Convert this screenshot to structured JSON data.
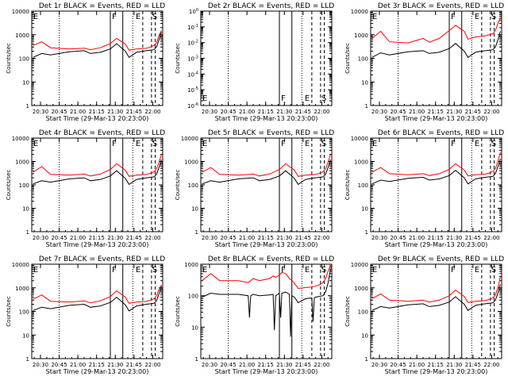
{
  "figure": {
    "start_time_label": "Start Time (29-Mar-13 20:23:00)",
    "ylabel": "Counts/sec",
    "x_ticks": [
      "20:30",
      "20:45",
      "21:00",
      "21:15",
      "21:30",
      "21:45",
      "22:00"
    ],
    "y_ticks_log": [
      "1",
      "10",
      "100",
      "1000",
      "10000"
    ],
    "y_ticks_small": [
      "10^-6",
      "10^-5",
      "10^-4",
      "10^-3",
      "10^-2",
      "10^-1",
      "10^0"
    ],
    "markers": {
      "F": "F",
      "E": "E",
      "S": "S",
      "E_start": "E"
    },
    "colors": {
      "events": "#000000",
      "lld": "#ff0000",
      "axis": "#000000"
    }
  },
  "chart_data": [
    {
      "type": "line",
      "title": "Det 1r BLACK = Events, RED = LLD",
      "xlabel": "Start Time (29-Mar-13 20:23:00)",
      "ylabel": "Counts/sec",
      "x_unit": "minutes since 20:23",
      "xlim": [
        0,
        105
      ],
      "ylim": [
        1,
        10000
      ],
      "yscale": "log",
      "series": [
        {
          "name": "Events",
          "color": "black",
          "x": [
            1,
            8,
            15,
            30,
            42,
            47,
            55,
            63,
            68,
            75,
            78,
            84,
            89,
            92,
            95,
            98,
            100,
            102,
            104
          ],
          "values": [
            110,
            160,
            140,
            190,
            210,
            160,
            180,
            250,
            420,
            200,
            110,
            180,
            200,
            210,
            220,
            230,
            300,
            600,
            1300
          ]
        },
        {
          "name": "LLD",
          "color": "red",
          "x": [
            1,
            8,
            15,
            30,
            42,
            47,
            55,
            63,
            68,
            75,
            78,
            84,
            89,
            92,
            95,
            98,
            100,
            102,
            104
          ],
          "values": [
            350,
            500,
            280,
            250,
            270,
            230,
            280,
            420,
            700,
            400,
            220,
            250,
            260,
            270,
            300,
            350,
            450,
            900,
            1500
          ]
        }
      ],
      "vlines_dotted": [
        22,
        81
      ],
      "vlines_solid": [
        63,
        73
      ],
      "vlines_dashed": [
        89,
        96,
        99
      ]
    },
    {
      "type": "line",
      "title": "Det 2r BLACK = Events, RED = LLD",
      "xlabel": "Start Time (29-Mar-13 20:23:00)",
      "ylabel": "Counts/sec",
      "x_unit": "minutes since 20:23",
      "xlim": [
        0,
        105
      ],
      "ylim": [
        1e-06,
        1
      ],
      "yscale": "log",
      "series": [],
      "vlines_dotted": [
        22,
        81
      ],
      "vlines_solid": [
        63,
        73
      ],
      "vlines_dashed": [
        89,
        96,
        99
      ]
    },
    {
      "type": "line",
      "title": "Det 3r BLACK = Events, RED = LLD",
      "xlabel": "Start Time (29-Mar-13 20:23:00)",
      "ylabel": "Counts/sec",
      "x_unit": "minutes since 20:23",
      "xlim": [
        0,
        105
      ],
      "ylim": [
        1,
        10000
      ],
      "yscale": "log",
      "series": [
        {
          "name": "Events",
          "color": "black",
          "x": [
            1,
            8,
            15,
            30,
            42,
            47,
            55,
            63,
            68,
            75,
            78,
            84,
            89,
            92,
            95,
            98,
            100,
            102,
            104
          ],
          "values": [
            110,
            170,
            140,
            190,
            210,
            160,
            180,
            260,
            430,
            200,
            110,
            180,
            200,
            210,
            220,
            230,
            300,
            600,
            1400
          ]
        },
        {
          "name": "LLD",
          "color": "red",
          "x": [
            1,
            8,
            15,
            30,
            42,
            47,
            55,
            63,
            68,
            75,
            78,
            84,
            89,
            92,
            95,
            98,
            100,
            102,
            104
          ],
          "values": [
            700,
            1400,
            500,
            450,
            700,
            480,
            700,
            1500,
            2500,
            1400,
            650,
            800,
            850,
            900,
            1000,
            1100,
            1500,
            3000,
            5000
          ]
        }
      ],
      "vlines_dotted": [
        22,
        81
      ],
      "vlines_solid": [
        63,
        73
      ],
      "vlines_dashed": [
        89,
        96,
        99
      ]
    },
    {
      "type": "line",
      "title": "Det 4r BLACK = Events, RED = LLD",
      "xlabel": "Start Time (29-Mar-13 20:23:00)",
      "ylabel": "Counts/sec",
      "x_unit": "minutes since 20:23",
      "xlim": [
        0,
        105
      ],
      "ylim": [
        1,
        10000
      ],
      "yscale": "log",
      "series": [
        {
          "name": "Events",
          "color": "black",
          "x": [
            1,
            8,
            15,
            30,
            42,
            47,
            55,
            63,
            68,
            75,
            78,
            84,
            89,
            92,
            95,
            98,
            100,
            102,
            104
          ],
          "values": [
            110,
            150,
            130,
            180,
            200,
            150,
            170,
            240,
            400,
            190,
            105,
            170,
            190,
            200,
            210,
            220,
            280,
            550,
            1200
          ]
        },
        {
          "name": "LLD",
          "color": "red",
          "x": [
            1,
            8,
            15,
            30,
            42,
            47,
            55,
            63,
            68,
            75,
            78,
            84,
            89,
            92,
            95,
            98,
            100,
            102,
            104
          ],
          "values": [
            350,
            600,
            280,
            260,
            290,
            240,
            290,
            450,
            800,
            420,
            230,
            260,
            270,
            280,
            310,
            360,
            480,
            900,
            2000
          ]
        }
      ],
      "vlines_dotted": [
        22,
        81
      ],
      "vlines_solid": [
        63,
        73
      ],
      "vlines_dashed": [
        89,
        96,
        99
      ]
    },
    {
      "type": "line",
      "title": "Det 5r BLACK = Events, RED = LLD",
      "xlabel": "Start Time (29-Mar-13 20:23:00)",
      "ylabel": "Counts/sec",
      "x_unit": "minutes since 20:23",
      "xlim": [
        0,
        105
      ],
      "ylim": [
        1,
        10000
      ],
      "yscale": "log",
      "series": [
        {
          "name": "Events",
          "color": "black",
          "x": [
            1,
            8,
            15,
            30,
            42,
            47,
            55,
            63,
            68,
            75,
            78,
            84,
            89,
            92,
            95,
            98,
            100,
            102,
            104
          ],
          "values": [
            110,
            150,
            130,
            180,
            200,
            150,
            170,
            240,
            400,
            190,
            105,
            170,
            190,
            200,
            210,
            220,
            280,
            550,
            1200
          ]
        },
        {
          "name": "LLD",
          "color": "red",
          "x": [
            1,
            8,
            15,
            30,
            42,
            47,
            55,
            63,
            68,
            75,
            78,
            84,
            89,
            92,
            95,
            98,
            100,
            102,
            104
          ],
          "values": [
            350,
            550,
            280,
            260,
            290,
            240,
            290,
            450,
            800,
            420,
            230,
            260,
            270,
            280,
            310,
            360,
            480,
            900,
            2000
          ]
        }
      ],
      "vlines_dotted": [
        22,
        81
      ],
      "vlines_solid": [
        63,
        73
      ],
      "vlines_dashed": [
        89,
        96,
        99
      ]
    },
    {
      "type": "line",
      "title": "Det 6r BLACK = Events, RED = LLD",
      "xlabel": "Start Time (29-Mar-13 20:23:00)",
      "ylabel": "Counts/sec",
      "x_unit": "minutes since 20:23",
      "xlim": [
        0,
        105
      ],
      "ylim": [
        1,
        10000
      ],
      "yscale": "log",
      "series": [
        {
          "name": "Events",
          "color": "black",
          "x": [
            1,
            8,
            15,
            30,
            42,
            47,
            55,
            63,
            68,
            75,
            78,
            84,
            89,
            92,
            95,
            98,
            100,
            102,
            104
          ],
          "values": [
            110,
            160,
            140,
            190,
            210,
            160,
            180,
            250,
            420,
            200,
            110,
            180,
            200,
            210,
            220,
            230,
            300,
            600,
            1300
          ]
        },
        {
          "name": "LLD",
          "color": "red",
          "x": [
            1,
            8,
            15,
            30,
            42,
            47,
            55,
            63,
            68,
            75,
            78,
            84,
            89,
            92,
            95,
            98,
            100,
            102,
            104
          ],
          "values": [
            350,
            550,
            300,
            270,
            300,
            250,
            300,
            460,
            800,
            430,
            240,
            270,
            280,
            290,
            320,
            380,
            500,
            1000,
            2500
          ]
        }
      ],
      "vlines_dotted": [
        22,
        81
      ],
      "vlines_solid": [
        63,
        73
      ],
      "vlines_dashed": [
        89,
        96,
        99
      ]
    },
    {
      "type": "line",
      "title": "Det 7r BLACK = Events, RED = LLD",
      "xlabel": "Start Time (29-Mar-13 20:23:00)",
      "ylabel": "Counts/sec",
      "x_unit": "minutes since 20:23",
      "xlim": [
        0,
        105
      ],
      "ylim": [
        1,
        10000
      ],
      "yscale": "log",
      "series": [
        {
          "name": "Events",
          "color": "black",
          "x": [
            1,
            8,
            15,
            30,
            42,
            47,
            55,
            63,
            68,
            75,
            78,
            84,
            89,
            92,
            95,
            98,
            100,
            102,
            104
          ],
          "values": [
            110,
            150,
            130,
            180,
            200,
            150,
            170,
            240,
            400,
            190,
            105,
            170,
            190,
            200,
            210,
            220,
            280,
            550,
            1200
          ]
        },
        {
          "name": "LLD",
          "color": "red",
          "x": [
            1,
            8,
            15,
            30,
            42,
            47,
            55,
            63,
            68,
            75,
            78,
            84,
            89,
            92,
            95,
            98,
            100,
            102,
            104
          ],
          "values": [
            330,
            500,
            270,
            250,
            280,
            230,
            280,
            430,
            750,
            400,
            220,
            250,
            260,
            270,
            300,
            340,
            450,
            850,
            1300
          ]
        }
      ],
      "vlines_dotted": [
        22,
        81
      ],
      "vlines_solid": [
        63,
        73
      ],
      "vlines_dashed": [
        89,
        96,
        99
      ]
    },
    {
      "type": "line",
      "title": "Det 8r BLACK = Events, RED = LLD",
      "xlabel": "Start Time (29-Mar-13 20:23:00)",
      "ylabel": "Counts/sec",
      "x_unit": "minutes since 20:23",
      "xlim": [
        0,
        105
      ],
      "ylim": [
        1,
        1000
      ],
      "yscale": "log",
      "series": [
        {
          "name": "Events",
          "color": "black",
          "x": [
            1,
            8,
            15,
            30,
            38,
            39,
            40,
            42,
            47,
            55,
            58,
            59,
            60,
            63,
            64,
            65,
            68,
            71,
            72,
            73,
            75,
            78,
            84,
            89,
            90,
            91,
            92,
            95,
            98,
            100,
            102,
            104
          ],
          "values": [
            90,
            120,
            110,
            110,
            100,
            20,
            100,
            110,
            100,
            105,
            110,
            8,
            100,
            120,
            20,
            120,
            130,
            110,
            5,
            100,
            90,
            60,
            80,
            85,
            15,
            85,
            90,
            95,
            100,
            130,
            250,
            700
          ]
        },
        {
          "name": "LLD",
          "color": "red",
          "x": [
            1,
            8,
            15,
            30,
            38,
            42,
            47,
            55,
            58,
            60,
            63,
            65,
            68,
            71,
            73,
            75,
            78,
            84,
            89,
            92,
            95,
            98,
            100,
            102,
            104
          ],
          "values": [
            300,
            500,
            300,
            300,
            260,
            350,
            300,
            350,
            420,
            380,
            450,
            550,
            500,
            350,
            300,
            250,
            170,
            180,
            190,
            200,
            220,
            260,
            350,
            600,
            900
          ]
        }
      ],
      "vlines_dotted": [
        22,
        81
      ],
      "vlines_solid": [
        63,
        73
      ],
      "vlines_dashed": [
        89,
        96,
        99
      ]
    },
    {
      "type": "line",
      "title": "Det 9r BLACK = Events, RED = LLD",
      "xlabel": "Start Time (29-Mar-13 20:23:00)",
      "ylabel": "Counts/sec",
      "x_unit": "minutes since 20:23",
      "xlim": [
        0,
        105
      ],
      "ylim": [
        1,
        10000
      ],
      "yscale": "log",
      "series": [
        {
          "name": "Events",
          "color": "black",
          "x": [
            1,
            8,
            15,
            30,
            42,
            47,
            55,
            63,
            68,
            75,
            78,
            84,
            89,
            92,
            95,
            98,
            100,
            102,
            104
          ],
          "values": [
            110,
            160,
            140,
            190,
            210,
            160,
            180,
            250,
            420,
            200,
            110,
            180,
            200,
            210,
            220,
            230,
            300,
            600,
            1400
          ]
        },
        {
          "name": "LLD",
          "color": "red",
          "x": [
            1,
            8,
            15,
            30,
            42,
            47,
            55,
            63,
            68,
            75,
            78,
            84,
            89,
            92,
            95,
            98,
            100,
            102,
            104
          ],
          "values": [
            350,
            550,
            300,
            270,
            300,
            250,
            300,
            460,
            800,
            430,
            240,
            270,
            280,
            290,
            320,
            380,
            500,
            1000,
            3000
          ]
        }
      ],
      "vlines_dotted": [
        22,
        81
      ],
      "vlines_solid": [
        63,
        73
      ],
      "vlines_dashed": [
        89,
        96,
        99
      ]
    }
  ]
}
